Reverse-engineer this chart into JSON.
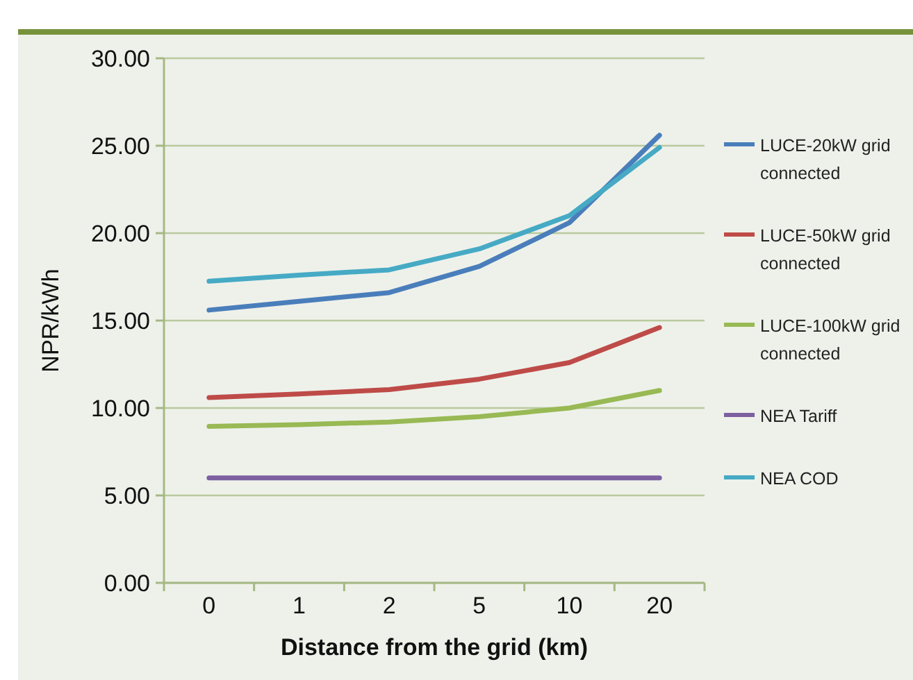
{
  "chart_data": {
    "type": "line",
    "xlabel": "Distance from the grid (km)",
    "ylabel": "NPR/kWh",
    "categories": [
      "0",
      "1",
      "2",
      "5",
      "10",
      "20"
    ],
    "series": [
      {
        "name": "LUCE-20kW grid connected",
        "color": "#4a7ebb",
        "values": [
          15.6,
          16.1,
          16.6,
          18.1,
          20.6,
          25.6
        ]
      },
      {
        "name": "LUCE-50kW grid connected",
        "color": "#be4b48",
        "values": [
          10.6,
          10.8,
          11.05,
          11.65,
          12.6,
          14.6
        ]
      },
      {
        "name": "LUCE-100kW grid connected",
        "color": "#98b954",
        "values": [
          8.95,
          9.05,
          9.2,
          9.5,
          10,
          11
        ]
      },
      {
        "name": "NEA Tariff",
        "color": "#7d60a0",
        "values": [
          6,
          6,
          6,
          6,
          6,
          6
        ]
      },
      {
        "name": "NEA COD",
        "color": "#46aac5",
        "values": [
          17.25,
          17.6,
          17.9,
          19.1,
          21,
          24.9
        ]
      }
    ],
    "ylim": [
      0,
      30
    ],
    "yticks": [
      {
        "value": 0,
        "label": "0.00"
      },
      {
        "value": 5,
        "label": "5.00"
      },
      {
        "value": 10,
        "label": "10.00"
      },
      {
        "value": 15,
        "label": "15.00"
      },
      {
        "value": 20,
        "label": "20.00"
      },
      {
        "value": 25,
        "label": "25.00"
      },
      {
        "value": 30,
        "label": "30.00"
      }
    ],
    "grid": "y",
    "legend": "right",
    "marker": "none",
    "line_style": "solid"
  }
}
